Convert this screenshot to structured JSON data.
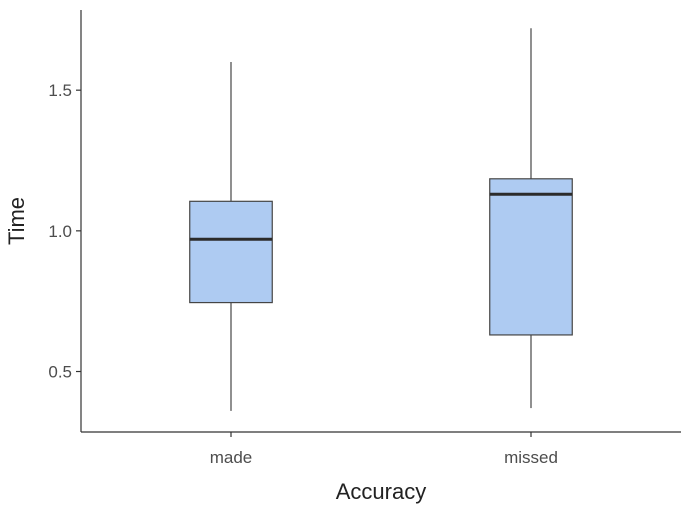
{
  "chart_data": {
    "type": "boxplot",
    "xlabel": "Accuracy",
    "ylabel": "Time",
    "categories": [
      "made",
      "missed"
    ],
    "boxes": [
      {
        "category": "made",
        "min": 0.36,
        "q1": 0.745,
        "median": 0.97,
        "q3": 1.105,
        "max": 1.6
      },
      {
        "category": "missed",
        "min": 0.37,
        "q1": 0.63,
        "median": 1.13,
        "q3": 1.185,
        "max": 1.72
      }
    ],
    "yticks": [
      0.5,
      1.0,
      1.5
    ],
    "ytick_labels": [
      "0.5",
      "1.0",
      "1.5"
    ],
    "ylim": [
      0.285,
      1.785
    ],
    "grid": false,
    "colors": {
      "box_fill": "#aecbf2",
      "box_stroke": "#454545",
      "axis": "#333333"
    }
  }
}
